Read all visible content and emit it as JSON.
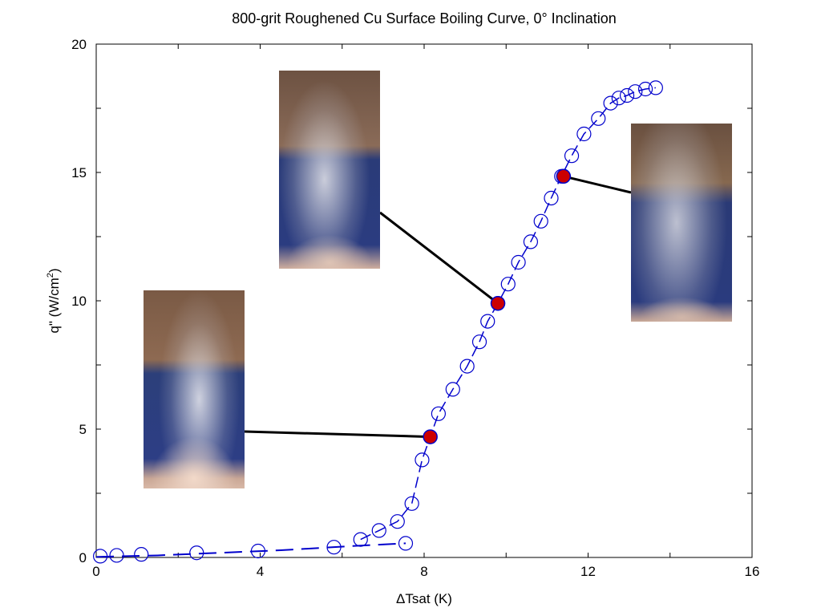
{
  "chart_data": {
    "type": "scatter",
    "title": "800-grit Roughened Cu Surface Boiling Curve, 0° Inclination",
    "xlabel": "ΔTsat (K)",
    "ylabel_main": "q\" (W/cm",
    "ylabel_sup": "2",
    "ylabel_tail": ")",
    "xlim": [
      0,
      16
    ],
    "ylim": [
      0,
      20
    ],
    "xticks": [
      0,
      4,
      8,
      12,
      16
    ],
    "yticks": [
      0,
      5,
      10,
      15,
      20
    ],
    "grid": false,
    "colors": {
      "series": "#0000cc",
      "highlight": "#cc0000",
      "axis": "#000000",
      "leader": "#000000"
    },
    "series": [
      {
        "marker": "open-circle",
        "line": "dashed",
        "x": [
          0.1,
          0.5,
          1.1,
          2.45,
          3.95,
          5.8,
          6.45,
          6.9,
          7.35,
          7.55,
          7.7,
          7.95,
          8.35,
          8.7,
          9.05,
          9.35,
          9.55,
          9.8,
          10.05,
          10.3,
          10.6,
          10.85,
          11.1,
          11.35,
          11.6,
          11.9,
          12.25,
          12.55,
          12.75,
          12.95,
          13.15,
          13.4,
          13.65
        ],
        "y": [
          0.05,
          0.08,
          0.12,
          0.18,
          0.25,
          0.4,
          0.7,
          1.05,
          1.4,
          0.55,
          2.1,
          3.8,
          5.6,
          6.55,
          7.45,
          8.4,
          9.2,
          9.9,
          10.65,
          11.5,
          12.3,
          13.1,
          14.0,
          14.85,
          15.65,
          16.5,
          17.1,
          17.7,
          17.9,
          18.0,
          18.15,
          18.25,
          18.3
        ]
      }
    ],
    "dashed_path": {
      "x": [
        0,
        1.5,
        3,
        4.5,
        6.3,
        7.55
      ],
      "y": [
        0.02,
        0.08,
        0.18,
        0.28,
        0.45,
        0.55
      ]
    },
    "highlighted_points": [
      {
        "x": 8.15,
        "y": 4.7
      },
      {
        "x": 9.8,
        "y": 9.9
      },
      {
        "x": 11.4,
        "y": 14.85
      }
    ],
    "photo_insets": [
      "bubble-photo-low-flux",
      "bubble-photo-mid-flux",
      "bubble-photo-high-flux"
    ]
  }
}
